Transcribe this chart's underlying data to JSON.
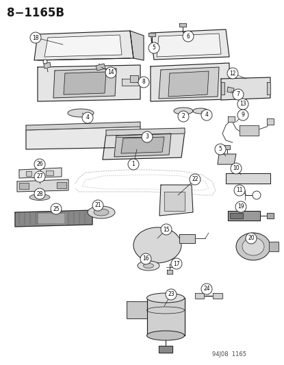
{
  "title": "8−1165B",
  "footer": "94J08  1165",
  "bg_color": "#ffffff",
  "lc": "#1a1a1a",
  "fig_width": 4.15,
  "fig_height": 5.33,
  "dpi": 100
}
